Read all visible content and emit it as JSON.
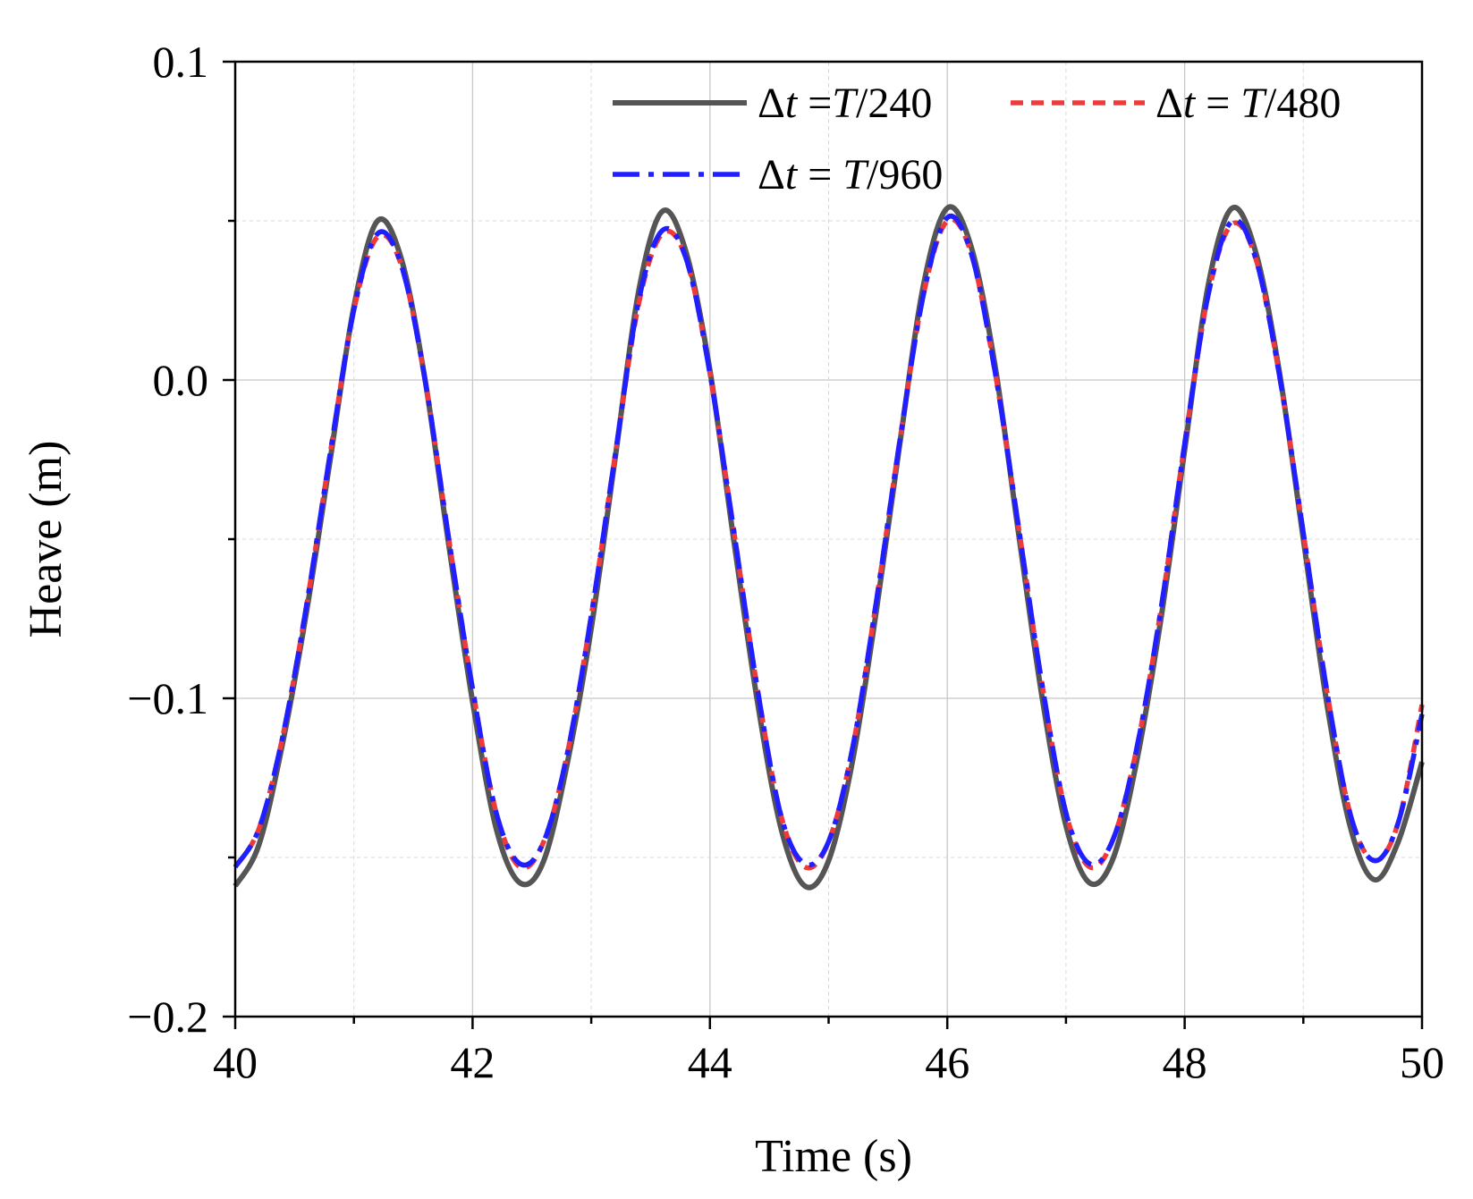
{
  "chart_data": {
    "type": "line",
    "title": "",
    "xlabel": "Time (s)",
    "ylabel": "Heave (m)",
    "xlim": [
      40,
      50
    ],
    "ylim": [
      -0.2,
      0.1
    ],
    "xticks": [
      40,
      42,
      44,
      46,
      48,
      50
    ],
    "xtick_labels": [
      "40",
      "42",
      "44",
      "46",
      "48",
      "50"
    ],
    "yticks": [
      -0.2,
      -0.1,
      0.0,
      0.1
    ],
    "ytick_labels": [
      "−0.2",
      "−0.1",
      "0.0",
      "0.1"
    ],
    "grid": true,
    "legend_position": "top-right",
    "x": [
      40.0,
      40.2,
      40.4,
      40.6,
      40.8,
      41.0,
      41.2,
      41.4,
      41.6,
      41.8,
      42.0,
      42.2,
      42.4,
      42.6,
      42.8,
      43.0,
      43.2,
      43.4,
      43.6,
      43.8,
      44.0,
      44.2,
      44.4,
      44.6,
      44.8,
      45.0,
      45.2,
      45.4,
      45.6,
      45.8,
      46.0,
      46.2,
      46.4,
      46.6,
      46.8,
      47.0,
      47.2,
      47.4,
      47.6,
      47.8,
      48.0,
      48.2,
      48.4,
      48.6,
      48.8,
      49.0,
      49.2,
      49.4,
      49.6,
      49.8,
      50.0
    ],
    "series": [
      {
        "name": "T/240",
        "legend_prefix": "Δt =",
        "color": "#555555",
        "dash": "solid",
        "values": [
          -0.159,
          -0.146,
          -0.114,
          -0.073,
          -0.025,
          0.023,
          0.05,
          0.038,
          0.0,
          -0.052,
          -0.101,
          -0.141,
          -0.158,
          -0.151,
          -0.12,
          -0.078,
          -0.025,
          0.028,
          0.053,
          0.04,
          0.003,
          -0.05,
          -0.101,
          -0.141,
          -0.159,
          -0.151,
          -0.12,
          -0.073,
          -0.02,
          0.03,
          0.054,
          0.042,
          0.005,
          -0.048,
          -0.1,
          -0.14,
          -0.158,
          -0.15,
          -0.119,
          -0.075,
          -0.022,
          0.03,
          0.054,
          0.04,
          0.002,
          -0.05,
          -0.102,
          -0.141,
          -0.157,
          -0.145,
          -0.12
        ]
      },
      {
        "name": "T/480",
        "legend_prefix": "Δt = ",
        "color": "#ee3a3a",
        "dash": "dashed",
        "values": [
          -0.153,
          -0.141,
          -0.112,
          -0.071,
          -0.023,
          0.022,
          0.045,
          0.036,
          0.0,
          -0.05,
          -0.097,
          -0.136,
          -0.153,
          -0.145,
          -0.117,
          -0.074,
          -0.024,
          0.024,
          0.046,
          0.038,
          0.002,
          -0.047,
          -0.097,
          -0.137,
          -0.153,
          -0.145,
          -0.116,
          -0.07,
          -0.019,
          0.027,
          0.05,
          0.04,
          0.003,
          -0.046,
          -0.096,
          -0.136,
          -0.153,
          -0.144,
          -0.115,
          -0.072,
          -0.02,
          0.027,
          0.049,
          0.038,
          0.001,
          -0.048,
          -0.098,
          -0.137,
          -0.151,
          -0.139,
          -0.102
        ]
      },
      {
        "name": "T/960",
        "legend_prefix": "Δt = ",
        "color": "#1f1fff",
        "dash": "dashdot",
        "values": [
          -0.153,
          -0.141,
          -0.112,
          -0.071,
          -0.023,
          0.022,
          0.046,
          0.036,
          0.0,
          -0.05,
          -0.097,
          -0.136,
          -0.152,
          -0.145,
          -0.117,
          -0.074,
          -0.024,
          0.025,
          0.047,
          0.038,
          0.002,
          -0.047,
          -0.097,
          -0.137,
          -0.152,
          -0.145,
          -0.116,
          -0.07,
          -0.019,
          0.027,
          0.051,
          0.04,
          0.003,
          -0.046,
          -0.096,
          -0.136,
          -0.152,
          -0.144,
          -0.115,
          -0.072,
          -0.02,
          0.027,
          0.05,
          0.038,
          0.001,
          -0.048,
          -0.098,
          -0.137,
          -0.151,
          -0.139,
          -0.105
        ]
      }
    ]
  }
}
